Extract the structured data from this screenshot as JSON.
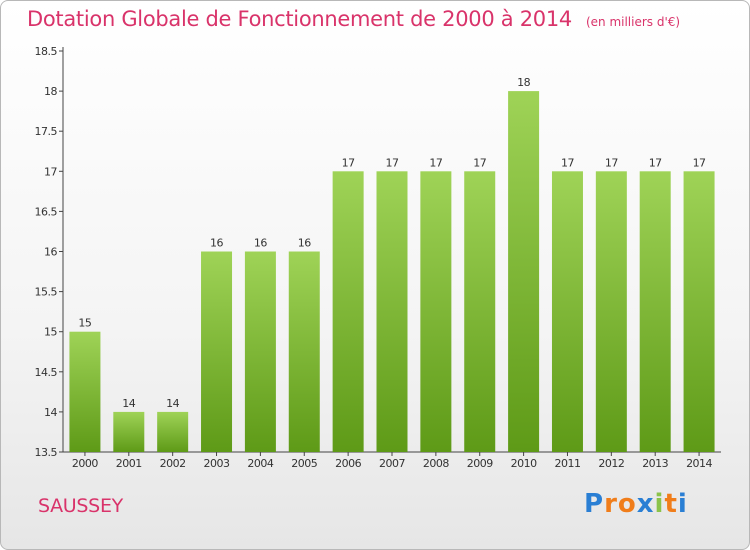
{
  "title": "Dotation Globale de Fonctionnement de 2000 à 2014",
  "unit_note": "(en milliers d'€)",
  "commune": "SAUSSEY",
  "brand": {
    "text": "Proxiti",
    "letter_colors": [
      "#2a7fd4",
      "#f07d1a",
      "#f07d1a",
      "#2a7fd4",
      "#8bc34a",
      "#f07d1a",
      "#2a7fd4"
    ]
  },
  "colors": {
    "bar_top": "#9fd357",
    "bar_bottom": "#5e9a17",
    "text": "#333333",
    "accent": "#d9336a"
  },
  "chart_data": {
    "type": "bar",
    "categories": [
      "2000",
      "2001",
      "2002",
      "2003",
      "2004",
      "2005",
      "2006",
      "2007",
      "2008",
      "2009",
      "2010",
      "2011",
      "2012",
      "2013",
      "2014"
    ],
    "values": [
      15,
      14,
      14,
      16,
      16,
      16,
      17,
      17,
      17,
      17,
      18,
      17,
      17,
      17,
      17
    ],
    "ylim": [
      13.5,
      18.5
    ],
    "yticks": [
      13.5,
      14,
      14.5,
      15,
      15.5,
      16,
      16.5,
      17,
      17.5,
      18,
      18.5
    ],
    "ytick_labels": [
      "13.5",
      "14",
      "14.5",
      "15",
      "15.5",
      "16",
      "16.5",
      "17",
      "17.5",
      "18",
      "18.5"
    ],
    "data_labels": [
      "15",
      "14",
      "14",
      "16",
      "16",
      "16",
      "17",
      "17",
      "17",
      "17",
      "18",
      "17",
      "17",
      "17",
      "17"
    ],
    "grid": false,
    "title": "Dotation Globale de Fonctionnement de 2000 à 2014"
  }
}
